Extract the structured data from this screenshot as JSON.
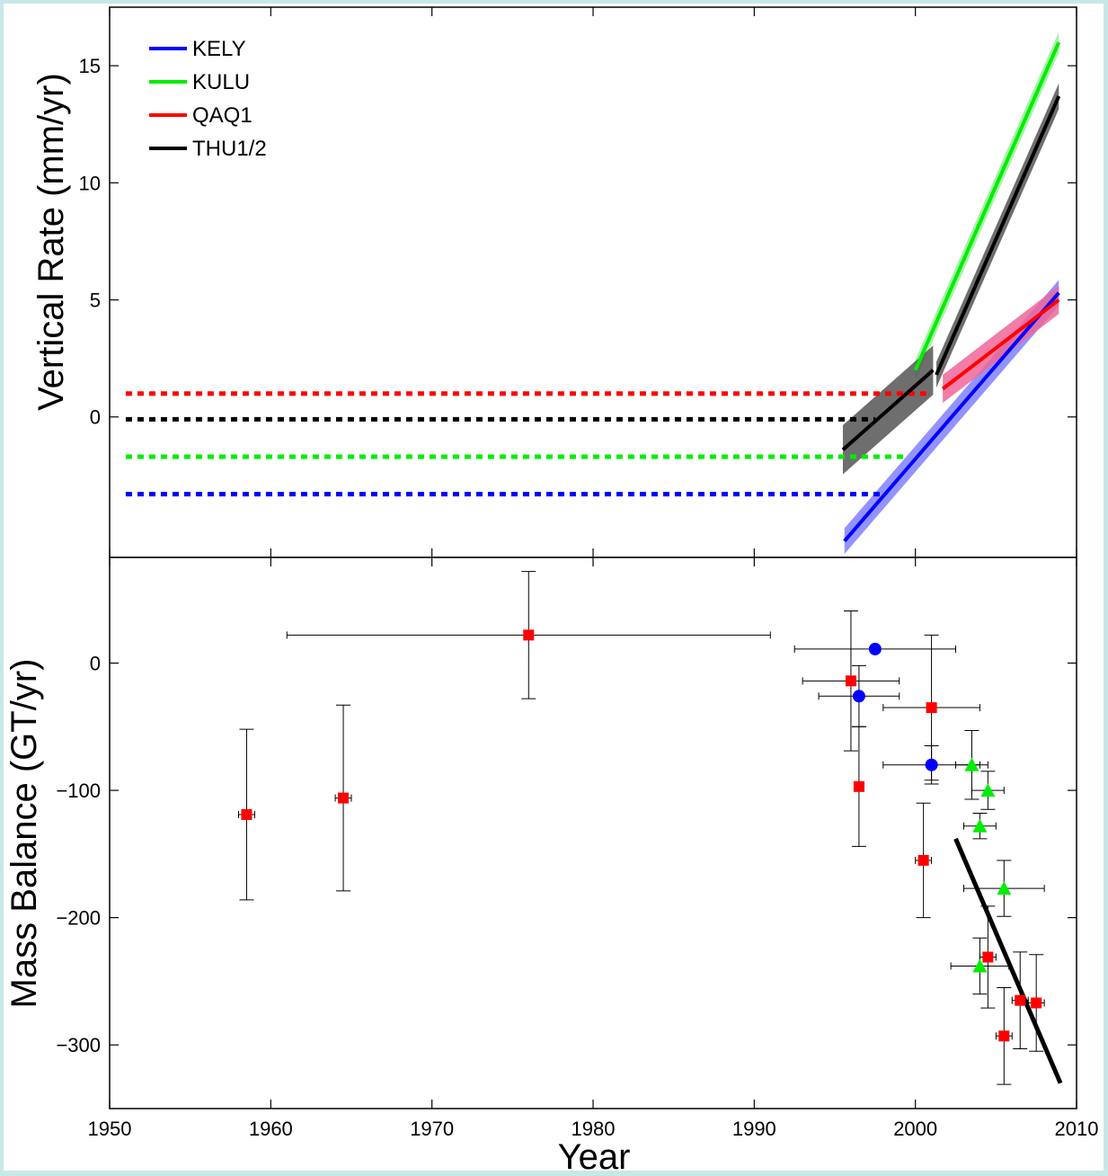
{
  "chart_data": [
    {
      "type": "line",
      "ylabel": "Vertical Rate (mm/yr)",
      "xlim": [
        1950,
        2010
      ],
      "ylim": [
        -6,
        17.5
      ],
      "yticks": [
        0,
        5,
        10,
        15
      ],
      "legend_position": "top-left",
      "legend": [
        {
          "name": "KELY",
          "color": "#0000ff"
        },
        {
          "name": "KULU",
          "color": "#00ee00"
        },
        {
          "name": "QAQ1",
          "color": "#ff0000"
        },
        {
          "name": "THU1/2",
          "color": "#000000"
        }
      ],
      "series": [
        {
          "name": "KELY",
          "color": "#0000ff",
          "band_color": "#8080ff",
          "baseline": {
            "x": [
              1951,
              1998
            ],
            "y": -3.3,
            "style": "dotted"
          },
          "trend": {
            "x": [
              1995.6,
              2008.9
            ],
            "y": [
              -5.3,
              5.3
            ],
            "uncertainty": 0.55
          }
        },
        {
          "name": "KULU",
          "color": "#00ee00",
          "band_color": "#99ee99",
          "baseline": {
            "x": [
              1951,
              1999.5
            ],
            "y": -1.7,
            "style": "dotted"
          },
          "trend": {
            "x": [
              2000,
              2008.9
            ],
            "y": [
              2.0,
              16.0
            ],
            "uncertainty": 0.45
          }
        },
        {
          "name": "QAQ1",
          "color": "#ff0000",
          "band_color": "#ee6699",
          "baseline": {
            "x": [
              1951,
              2001
            ],
            "y": 1.0,
            "style": "dotted"
          },
          "trend": {
            "x": [
              2001.7,
              2008.9
            ],
            "y": [
              1.2,
              5.0
            ],
            "uncertainty": 0.6
          }
        },
        {
          "name": "THU1/2",
          "color": "#000000",
          "band_color": "#555555",
          "baseline": {
            "x": [
              1951,
              1997.5
            ],
            "y": -0.1,
            "style": "dotted"
          },
          "trend": {
            "x": [
              1995.5,
              2001.1
            ],
            "y": [
              -1.4,
              2.0
            ],
            "uncertainty": 1.05
          },
          "trend2": {
            "x": [
              2001.3,
              2008.9
            ],
            "y": [
              1.8,
              13.7
            ],
            "uncertainty": 0.55
          }
        }
      ]
    },
    {
      "type": "scatter",
      "xlabel": "Year",
      "ylabel": "Mass Balance (GT/yr)",
      "xlim": [
        1950,
        2010
      ],
      "ylim": [
        -350,
        83
      ],
      "xticks": [
        1950,
        1960,
        1970,
        1980,
        1990,
        2000,
        2010
      ],
      "yticks": [
        -300,
        -200,
        -100,
        0
      ],
      "series": [
        {
          "marker": "square",
          "color": "#ff0000",
          "points": [
            {
              "x": 1958.5,
              "y": -119,
              "xerr": 0.5,
              "yerr": 67
            },
            {
              "x": 1964.5,
              "y": -106,
              "xerr": 0.5,
              "yerr": 73
            },
            {
              "x": 1976.0,
              "y": 22,
              "xerr": 15,
              "yerr": 50
            },
            {
              "x": 1996.0,
              "y": -14,
              "xerr": 3,
              "yerr": 55
            },
            {
              "x": 1996.5,
              "y": -97,
              "xerr": 0.3,
              "yerr": 47
            },
            {
              "x": 2001.0,
              "y": -35,
              "xerr": 3,
              "yerr": 57
            },
            {
              "x": 2000.5,
              "y": -155,
              "xerr": 0.5,
              "yerr": 45
            },
            {
              "x": 2004.5,
              "y": -231,
              "xerr": 0.5,
              "yerr": 40
            },
            {
              "x": 2005.5,
              "y": -293,
              "xerr": 0.5,
              "yerr": 38
            },
            {
              "x": 2006.5,
              "y": -265,
              "xerr": 0.5,
              "yerr": 38
            },
            {
              "x": 2007.5,
              "y": -267,
              "xerr": 0.5,
              "yerr": 38
            }
          ]
        },
        {
          "marker": "circle",
          "color": "#0000ff",
          "points": [
            {
              "x": 1997.5,
              "y": 11,
              "xerr": 5,
              "yerr": 0
            },
            {
              "x": 1996.5,
              "y": -26,
              "xerr": 2.5,
              "yerr": 24
            },
            {
              "x": 2001.0,
              "y": -80,
              "xerr": 3,
              "yerr": 15
            }
          ]
        },
        {
          "marker": "triangle",
          "color": "#00ee00",
          "points": [
            {
              "x": 2003.5,
              "y": -80,
              "xerr": 1,
              "yerr": 27
            },
            {
              "x": 2004.5,
              "y": -100,
              "xerr": 1,
              "yerr": 15
            },
            {
              "x": 2004.0,
              "y": -128,
              "xerr": 1,
              "yerr": 10
            },
            {
              "x": 2005.5,
              "y": -177,
              "xerr": 2.5,
              "yerr": 22
            },
            {
              "x": 2004.0,
              "y": -238,
              "xerr": 1.8,
              "yerr": 22
            }
          ]
        }
      ],
      "trend_line": {
        "x": [
          2002.5,
          2009
        ],
        "y": [
          -138,
          -330
        ],
        "color": "#000000"
      }
    }
  ]
}
